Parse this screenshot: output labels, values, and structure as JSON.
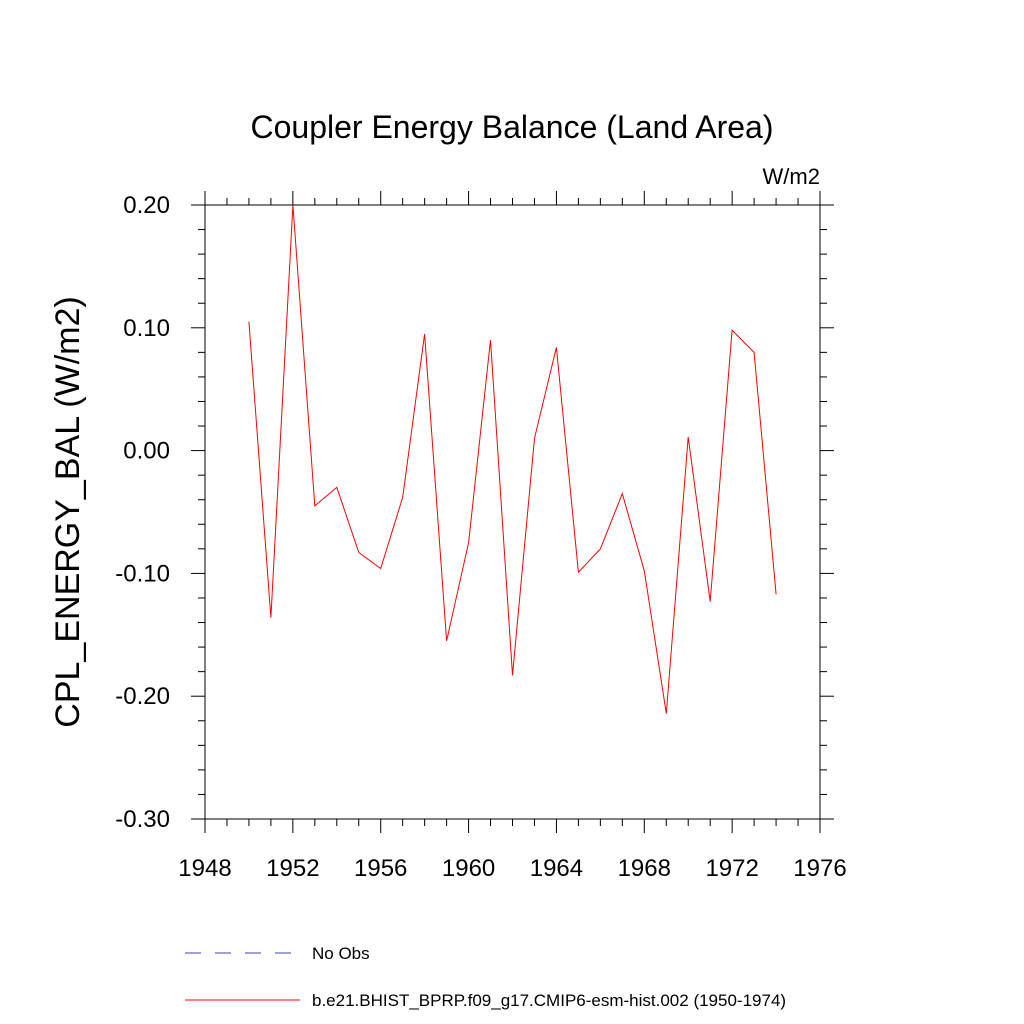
{
  "chart_data": {
    "type": "line",
    "title": "Coupler Energy Balance (Land Area)",
    "units_label": "W/m2",
    "ylabel": "CPL_ENERGY_BAL  (W/m2)",
    "xlabel": "",
    "xlim": [
      1948,
      1976
    ],
    "ylim": [
      -0.3,
      0.2
    ],
    "x_ticks": [
      {
        "value": 1948,
        "label": "1948"
      },
      {
        "value": 1952,
        "label": "1952"
      },
      {
        "value": 1956,
        "label": "1956"
      },
      {
        "value": 1960,
        "label": "1960"
      },
      {
        "value": 1964,
        "label": "1964"
      },
      {
        "value": 1968,
        "label": "1968"
      },
      {
        "value": 1972,
        "label": "1972"
      },
      {
        "value": 1976,
        "label": "1976"
      }
    ],
    "y_ticks": [
      {
        "value": 0.2,
        "label": "0.20"
      },
      {
        "value": 0.1,
        "label": "0.10"
      },
      {
        "value": 0.0,
        "label": "0.00"
      },
      {
        "value": -0.1,
        "label": "-0.10"
      },
      {
        "value": -0.2,
        "label": "-0.20"
      },
      {
        "value": -0.3,
        "label": "-0.30"
      }
    ],
    "grid": false,
    "series": [
      {
        "name": "b.e21.BHIST_BPRP.f09_g17.CMIP6-esm-hist.002 (1950-1974)",
        "color": "#ff0000",
        "dash": "solid",
        "x": [
          1950,
          1951,
          1952,
          1953,
          1954,
          1955,
          1956,
          1957,
          1958,
          1959,
          1960,
          1961,
          1962,
          1963,
          1964,
          1965,
          1966,
          1967,
          1968,
          1969,
          1970,
          1971,
          1972,
          1973,
          1974
        ],
        "y": [
          0.105,
          -0.136,
          0.2,
          -0.045,
          -0.03,
          -0.083,
          -0.096,
          -0.038,
          0.095,
          -0.155,
          -0.075,
          0.09,
          -0.183,
          0.01,
          0.084,
          -0.099,
          -0.08,
          -0.035,
          -0.098,
          -0.214,
          0.011,
          -0.123,
          0.098,
          0.08,
          -0.117
        ]
      }
    ],
    "legend": [
      {
        "label": "No Obs",
        "color": "#4040c0",
        "dash": "dashed"
      },
      {
        "label": "b.e21.BHIST_BPRP.f09_g17.CMIP6-esm-hist.002 (1950-1974)",
        "color": "#ff0000",
        "dash": "solid"
      }
    ],
    "legend_position": "bottom"
  }
}
